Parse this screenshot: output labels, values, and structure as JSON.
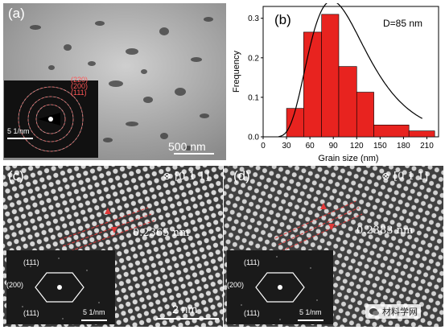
{
  "panel_a": {
    "label": "(a)",
    "scale_bar": "500 nm",
    "inset_scale": "5 1/nm",
    "rings": [
      "(220)",
      "(200)",
      "(111)"
    ]
  },
  "panel_b": {
    "label": "(b)",
    "annotation": "D=85 nm"
  },
  "chart_data": {
    "type": "bar",
    "xlabel": "Grain size (nm)",
    "ylabel": "Frequency",
    "xlim": [
      0,
      225
    ],
    "ylim": [
      0,
      0.33
    ],
    "xticks": [
      "0",
      "30",
      "60",
      "90",
      "120",
      "150",
      "180",
      "210"
    ],
    "yticks": [
      "0.0",
      "0.1",
      "0.2",
      "0.3"
    ],
    "bins": [
      [
        30,
        52
      ],
      [
        52,
        75
      ],
      [
        75,
        97
      ],
      [
        97,
        120
      ],
      [
        120,
        142
      ],
      [
        142,
        187
      ],
      [
        187,
        220
      ]
    ],
    "values": [
      0.072,
      0.265,
      0.31,
      0.178,
      0.113,
      0.03,
      0.015
    ],
    "fit_curve": "lognormal",
    "bar_color": "#e8231f"
  },
  "panel_c": {
    "label": "(c)",
    "zone_axis": "⊗ [0 1 1]",
    "d_spacing": "0.2365 nm",
    "scale_bar": "2 nm",
    "inset_scale": "5 1/nm",
    "fft_labels": [
      "(111)",
      "(200)",
      "(111)"
    ]
  },
  "panel_d": {
    "label": "(d)",
    "zone_axis": "⊗ [0 1 1]",
    "d_spacing": "0.2383 nm",
    "inset_scale": "5 1/nm",
    "fft_labels": [
      "(111)",
      "(200)",
      "(111)"
    ]
  },
  "watermark": "材料学网"
}
